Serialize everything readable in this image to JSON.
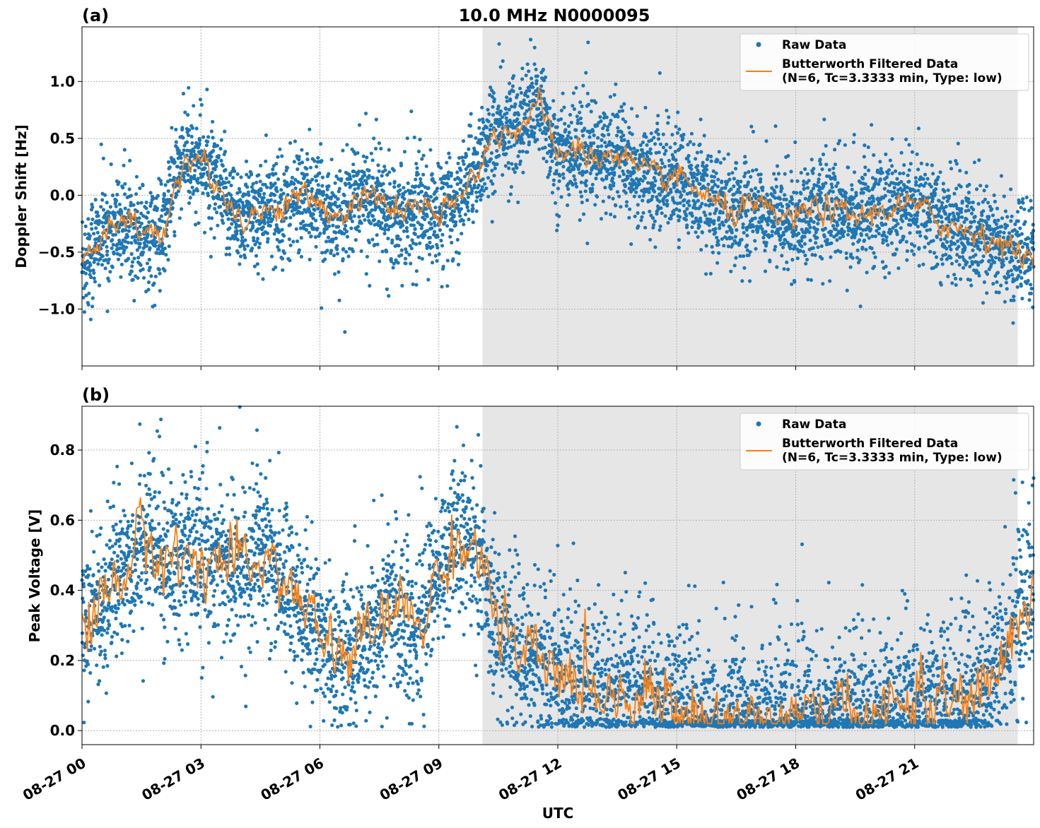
{
  "chart_data": {
    "type": "scatter",
    "title": "10.0 MHz N0000095",
    "xlabel": "UTC",
    "x_tick_labels": [
      "08-27 00",
      "08-27 03",
      "08-27 06",
      "08-27 09",
      "08-27 12",
      "08-27 15",
      "08-27 18",
      "08-27 21"
    ],
    "x_tick_hours": [
      0,
      3,
      6,
      9,
      12,
      15,
      18,
      21
    ],
    "x_range_hours": [
      0,
      24
    ],
    "shaded_region_hours": [
      10.1,
      23.6
    ],
    "shaded_color": "#e6e6e6",
    "grid": true,
    "legend_position": "top-right",
    "colors": {
      "raw": "#1f77b4",
      "filtered": "#ff7f0e"
    },
    "panels": [
      {
        "tag": "(a)",
        "ylabel": "Doppler Shift [Hz]",
        "ylim": [
          -1.5,
          1.48
        ],
        "y_ticks": [
          1.0,
          0.5,
          0.0,
          -0.5,
          -1.0
        ],
        "y_tick_labels": [
          "1.0",
          "0.5",
          "0.0",
          "−0.5",
          "−1.0"
        ],
        "legend": [
          "Raw Data",
          "Butterworth Filtered Data",
          "(N=6, Tc=3.3333 min, Type: low)"
        ],
        "series": [
          {
            "name": "Raw Data",
            "style": "points",
            "spread": 0.28,
            "x": [
              0,
              0.5,
              1,
              1.5,
              2,
              2.3,
              2.6,
              3,
              3.5,
              4,
              4.5,
              5,
              5.5,
              6,
              6.5,
              7,
              7.5,
              8,
              8.5,
              9,
              9.5,
              10,
              10.5,
              11,
              11.5,
              12,
              12.5,
              13,
              13.5,
              14,
              14.5,
              15,
              15.5,
              16,
              16.5,
              17,
              17.5,
              18,
              18.5,
              19,
              19.5,
              20,
              20.5,
              21,
              21.5,
              22,
              22.5,
              23,
              23.5,
              24
            ],
            "y": [
              -0.6,
              -0.35,
              -0.25,
              -0.3,
              -0.4,
              0.1,
              0.3,
              0.3,
              0.0,
              -0.2,
              -0.15,
              -0.1,
              0.0,
              -0.1,
              -0.2,
              0.0,
              -0.05,
              -0.15,
              -0.1,
              -0.2,
              -0.05,
              0.3,
              0.55,
              0.6,
              0.8,
              0.35,
              0.4,
              0.3,
              0.4,
              0.2,
              0.15,
              0.15,
              0.05,
              -0.1,
              -0.15,
              -0.1,
              -0.2,
              -0.2,
              -0.1,
              -0.15,
              -0.2,
              -0.15,
              -0.1,
              -0.1,
              -0.2,
              -0.3,
              -0.3,
              -0.4,
              -0.5,
              -0.55
            ]
          },
          {
            "name": "Butterworth Filtered Data",
            "style": "line",
            "jitter": 0.1,
            "x": [
              0,
              0.5,
              1,
              1.5,
              2,
              2.3,
              2.6,
              3,
              3.5,
              4,
              4.5,
              5,
              5.5,
              6,
              6.5,
              7,
              7.5,
              8,
              8.5,
              9,
              9.5,
              10,
              10.5,
              11,
              11.5,
              12,
              12.5,
              13,
              13.5,
              14,
              14.5,
              15,
              15.5,
              16,
              16.5,
              17,
              17.5,
              18,
              18.5,
              19,
              19.5,
              20,
              20.5,
              21,
              21.5,
              22,
              22.5,
              23,
              23.5,
              24
            ],
            "y": [
              -0.6,
              -0.35,
              -0.25,
              -0.3,
              -0.4,
              0.1,
              0.3,
              0.3,
              0.0,
              -0.2,
              -0.15,
              -0.1,
              0.0,
              -0.1,
              -0.2,
              0.0,
              -0.05,
              -0.15,
              -0.1,
              -0.2,
              -0.05,
              0.3,
              0.55,
              0.6,
              0.8,
              0.35,
              0.4,
              0.3,
              0.4,
              0.2,
              0.15,
              0.15,
              0.05,
              -0.1,
              -0.15,
              -0.1,
              -0.2,
              -0.2,
              -0.1,
              -0.15,
              -0.2,
              -0.15,
              -0.1,
              -0.1,
              -0.2,
              -0.3,
              -0.3,
              -0.4,
              -0.5,
              -0.55
            ]
          }
        ]
      },
      {
        "tag": "(b)",
        "ylabel": "Peak Voltage [V]",
        "ylim": [
          -0.04,
          0.925
        ],
        "y_ticks": [
          0.8,
          0.6,
          0.4,
          0.2,
          0.0
        ],
        "y_tick_labels": [
          "0.8",
          "0.6",
          "0.4",
          "0.2",
          "0.0"
        ],
        "legend": [
          "Raw Data",
          "Butterworth Filtered Data",
          "(N=6, Tc=3.3333 min, Type: low)"
        ],
        "series": [
          {
            "name": "Raw Data",
            "style": "points",
            "spread": 0.14,
            "x": [
              0,
              0.5,
              1,
              1.5,
              2,
              2.5,
              3,
              3.5,
              4,
              4.5,
              5,
              5.5,
              6,
              6.5,
              7,
              7.5,
              8,
              8.5,
              9,
              9.5,
              10,
              10.5,
              11,
              11.5,
              12,
              12.5,
              13,
              13.5,
              14,
              14.5,
              15,
              15.5,
              16,
              16.5,
              17,
              17.5,
              18,
              18.5,
              19,
              19.5,
              20,
              20.5,
              21,
              21.5,
              22,
              22.5,
              23,
              23.5,
              24
            ],
            "y": [
              0.3,
              0.38,
              0.45,
              0.55,
              0.5,
              0.48,
              0.5,
              0.48,
              0.45,
              0.5,
              0.45,
              0.35,
              0.28,
              0.2,
              0.25,
              0.3,
              0.35,
              0.3,
              0.45,
              0.55,
              0.5,
              0.3,
              0.2,
              0.2,
              0.15,
              0.15,
              0.12,
              0.1,
              0.12,
              0.1,
              0.05,
              0.04,
              0.03,
              0.04,
              0.03,
              0.03,
              0.03,
              0.04,
              0.04,
              0.05,
              0.05,
              0.06,
              0.1,
              0.08,
              0.07,
              0.1,
              0.15,
              0.3,
              0.4
            ]
          },
          {
            "name": "Butterworth Filtered Data",
            "style": "line",
            "jitter": 0.08,
            "x": [
              0,
              0.5,
              1,
              1.5,
              2,
              2.5,
              3,
              3.5,
              4,
              4.5,
              5,
              5.5,
              6,
              6.5,
              7,
              7.5,
              8,
              8.5,
              9,
              9.5,
              10,
              10.5,
              11,
              11.5,
              12,
              12.5,
              13,
              13.5,
              14,
              14.5,
              15,
              15.5,
              16,
              16.5,
              17,
              17.5,
              18,
              18.5,
              19,
              19.5,
              20,
              20.5,
              21,
              21.5,
              22,
              22.5,
              23,
              23.5,
              24
            ],
            "y": [
              0.3,
              0.38,
              0.45,
              0.55,
              0.5,
              0.48,
              0.5,
              0.48,
              0.45,
              0.5,
              0.45,
              0.35,
              0.28,
              0.2,
              0.25,
              0.3,
              0.35,
              0.3,
              0.45,
              0.55,
              0.5,
              0.3,
              0.2,
              0.2,
              0.15,
              0.15,
              0.12,
              0.1,
              0.12,
              0.1,
              0.05,
              0.04,
              0.03,
              0.04,
              0.03,
              0.03,
              0.03,
              0.04,
              0.04,
              0.05,
              0.05,
              0.06,
              0.1,
              0.08,
              0.07,
              0.1,
              0.15,
              0.3,
              0.4
            ]
          }
        ]
      }
    ]
  }
}
